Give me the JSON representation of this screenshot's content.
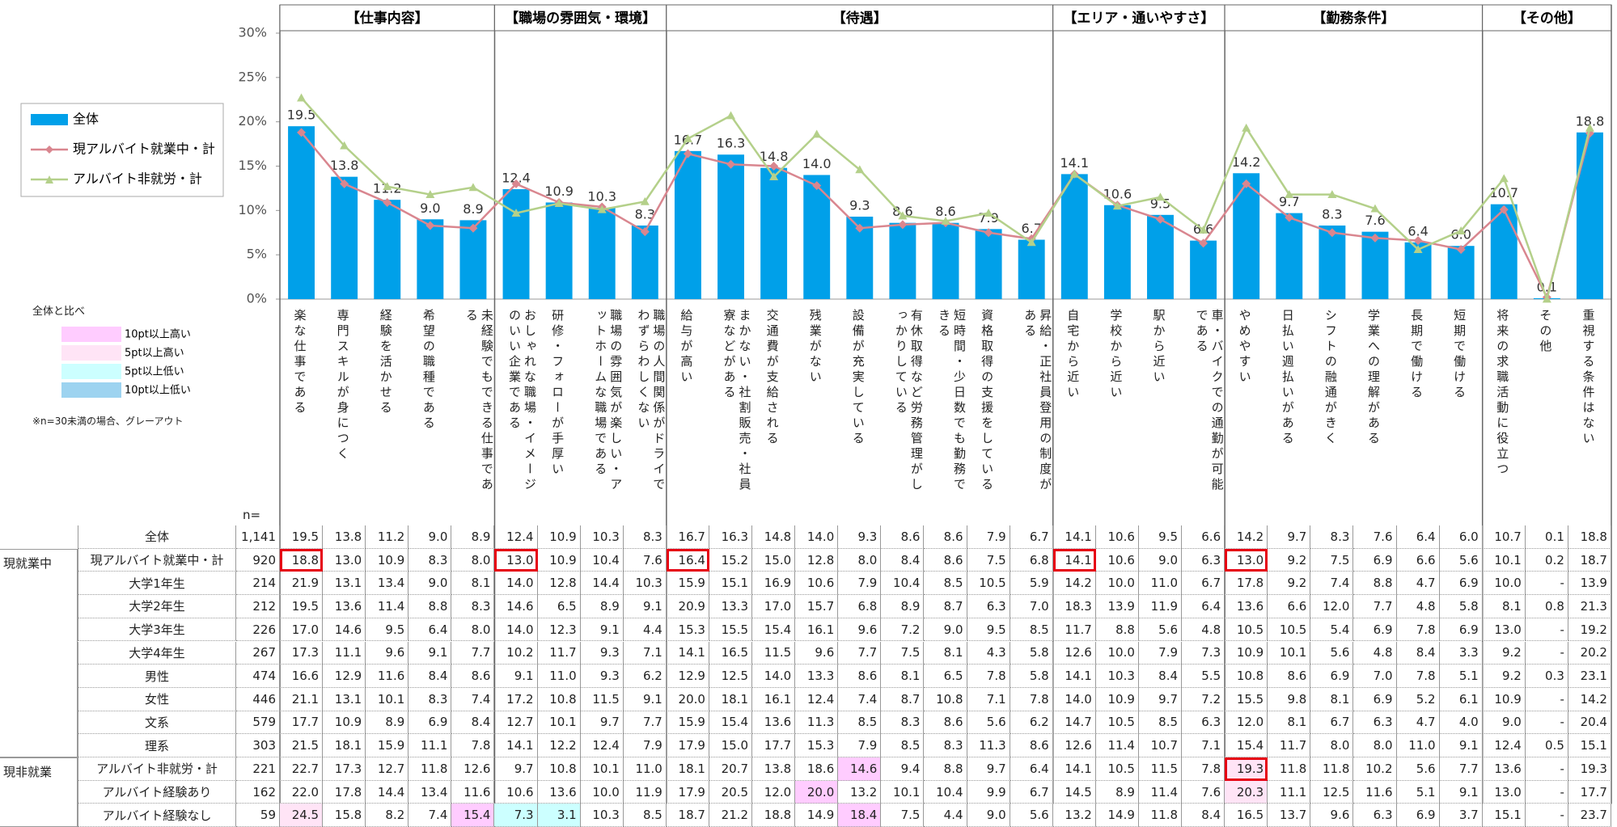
{
  "chart_data": {
    "type": "bar",
    "ylim": [
      0,
      30
    ],
    "yticks": [
      {
        "value": 0,
        "label": "0%"
      },
      {
        "value": 5,
        "label": "5%"
      },
      {
        "value": 10,
        "label": "10%"
      },
      {
        "value": 15,
        "label": "15%"
      },
      {
        "value": 20,
        "label": "20%"
      },
      {
        "value": 25,
        "label": "25%"
      },
      {
        "value": 30,
        "label": "30%"
      }
    ],
    "groups": [
      {
        "name": "【仕事内容】",
        "span": 5
      },
      {
        "name": "【職場の雰囲気・環境】",
        "span": 4
      },
      {
        "name": "【待遇】",
        "span": 9
      },
      {
        "name": "【エリア・通いやすさ】",
        "span": 4
      },
      {
        "name": "【勤務条件】",
        "span": 6
      },
      {
        "name": "【その他】",
        "span": 3
      }
    ],
    "categories": [
      "楽な仕事である",
      "専門スキルが身につく",
      "経験を活かせる",
      "希望の職種である",
      "未経験でもできる仕事である",
      "おしゃれな職場・イメージのいい企業である",
      "研修・フォローが手厚い",
      "職場の雰囲気が楽しい・アットホームな職場である",
      "職場の人間関係がドライでわずらわしくない",
      "給与が高い",
      "まかない・社割販売・社員寮などがある",
      "交通費が支給される",
      "残業がない",
      "設備が充実している",
      "有休取得など労務管理がしっかりしている",
      "短時間・少日数でも勤務できる",
      "資格取得の支援をしている",
      "昇給・正社員登用の制度がある",
      "自宅から近い",
      "学校から近い",
      "駅から近い",
      "車・バイクでの通勤が可能である",
      "やめやすい",
      "日払い週払いがある",
      "シフトの融通がきく",
      "学業への理解がある",
      "長期で働ける",
      "短期で働ける",
      "将来の求職活動に役立つ",
      "その他",
      "重視する条件はない"
    ],
    "series": [
      {
        "name": "全体",
        "type": "bar",
        "color": "#00a0e9",
        "values": [
          19.5,
          13.8,
          11.2,
          9.0,
          8.9,
          12.4,
          10.9,
          10.3,
          8.3,
          16.7,
          16.3,
          14.8,
          14.0,
          9.3,
          8.6,
          8.6,
          7.9,
          6.7,
          14.1,
          10.6,
          9.5,
          6.6,
          14.2,
          9.7,
          8.3,
          7.6,
          6.4,
          6.0,
          10.7,
          0.1,
          18.8
        ],
        "value_labels": [
          "19.5",
          "13.8",
          "11.2",
          "9.0",
          "8.9",
          "12.4",
          "10.9",
          "10.3",
          "8.3",
          "16.7",
          "16.3",
          "14.8",
          "14.0",
          "9.3",
          "8.6",
          "8.6",
          "7.9",
          "6.7",
          "14.1",
          "10.6",
          "9.5",
          "6.6",
          "14.2",
          "9.7",
          "8.3",
          "7.6",
          "6.4",
          "6.0",
          "10.7",
          "0.1",
          "18.8"
        ]
      },
      {
        "name": "現アルバイト就業中・計",
        "type": "line",
        "marker": "diamond",
        "color": "#d9868f",
        "values": [
          18.8,
          13.0,
          10.9,
          8.3,
          8.0,
          13.0,
          10.9,
          10.4,
          7.6,
          16.4,
          15.2,
          15.0,
          12.8,
          8.0,
          8.4,
          8.6,
          7.5,
          6.8,
          14.1,
          10.6,
          9.0,
          6.3,
          13.0,
          9.2,
          7.5,
          6.9,
          6.6,
          5.6,
          10.1,
          0.2,
          18.7
        ]
      },
      {
        "name": "アルバイト非就労・計",
        "type": "line",
        "marker": "triangle",
        "color": "#b4d08a",
        "values": [
          22.7,
          17.3,
          12.7,
          11.8,
          12.6,
          9.7,
          10.8,
          10.1,
          11.0,
          18.1,
          20.7,
          13.8,
          18.6,
          14.6,
          9.4,
          8.8,
          9.7,
          6.4,
          14.1,
          10.5,
          11.5,
          7.8,
          19.3,
          11.8,
          11.8,
          10.2,
          5.6,
          7.7,
          13.6,
          0,
          19.3
        ]
      }
    ]
  },
  "highlight_legend": {
    "title": "全体と比べ",
    "items": [
      {
        "label": "10pt以上高い",
        "color": "#ffccff"
      },
      {
        "label": "5pt以上高い",
        "color": "#ffe4f6"
      },
      {
        "label": "5pt以上低い",
        "color": "#ccffff"
      },
      {
        "label": "10pt以上低い",
        "color": "#9dd3f0"
      }
    ],
    "note": "※n=30未満の場合、グレーアウト"
  },
  "table": {
    "n_label": "n=",
    "total": {
      "label": "全体",
      "n": "1,141",
      "values": [
        "19.5",
        "13.8",
        "11.2",
        "9.0",
        "8.9",
        "12.4",
        "10.9",
        "10.3",
        "8.3",
        "16.7",
        "16.3",
        "14.8",
        "14.0",
        "9.3",
        "8.6",
        "8.6",
        "7.9",
        "6.7",
        "14.1",
        "10.6",
        "9.5",
        "6.6",
        "14.2",
        "9.7",
        "8.3",
        "7.6",
        "6.4",
        "6.0",
        "10.7",
        "0.1",
        "18.8"
      ]
    },
    "sections": [
      {
        "name": "現就業中",
        "rows": [
          {
            "label": "現アルバイト就業中・計",
            "n": "920",
            "boxed": [
              0,
              5,
              9,
              18,
              22
            ],
            "values": [
              "18.8",
              "13.0",
              "10.9",
              "8.3",
              "8.0",
              "13.0",
              "10.9",
              "10.4",
              "7.6",
              "16.4",
              "15.2",
              "15.0",
              "12.8",
              "8.0",
              "8.4",
              "8.6",
              "7.5",
              "6.8",
              "14.1",
              "10.6",
              "9.0",
              "6.3",
              "13.0",
              "9.2",
              "7.5",
              "6.9",
              "6.6",
              "5.6",
              "10.1",
              "0.2",
              "18.7"
            ]
          },
          {
            "label": "大学1年生",
            "n": "214",
            "values": [
              "21.9",
              "13.1",
              "13.4",
              "9.0",
              "8.1",
              "14.0",
              "12.8",
              "14.4",
              "10.3",
              "15.9",
              "15.1",
              "16.9",
              "10.6",
              "7.9",
              "10.4",
              "8.5",
              "10.5",
              "5.9",
              "14.2",
              "10.0",
              "11.0",
              "6.7",
              "17.8",
              "9.2",
              "7.4",
              "8.8",
              "4.7",
              "6.9",
              "10.0",
              "-",
              "13.9"
            ]
          },
          {
            "label": "大学2年生",
            "n": "212",
            "values": [
              "19.5",
              "13.6",
              "11.4",
              "8.8",
              "8.3",
              "14.6",
              "6.5",
              "8.9",
              "9.1",
              "20.9",
              "13.3",
              "17.0",
              "15.7",
              "6.8",
              "8.9",
              "8.7",
              "6.3",
              "7.0",
              "18.3",
              "13.9",
              "11.9",
              "6.4",
              "13.6",
              "6.6",
              "12.0",
              "7.7",
              "4.8",
              "5.8",
              "8.1",
              "0.8",
              "21.3"
            ]
          },
          {
            "label": "大学3年生",
            "n": "226",
            "values": [
              "17.0",
              "14.6",
              "9.5",
              "6.4",
              "8.0",
              "14.0",
              "12.3",
              "9.1",
              "4.4",
              "15.3",
              "15.5",
              "15.4",
              "16.1",
              "9.6",
              "7.2",
              "9.0",
              "9.5",
              "8.5",
              "11.7",
              "8.8",
              "5.6",
              "4.8",
              "10.5",
              "10.5",
              "5.4",
              "6.9",
              "7.8",
              "6.9",
              "13.0",
              "-",
              "19.2"
            ]
          },
          {
            "label": "大学4年生",
            "n": "267",
            "values": [
              "17.3",
              "11.1",
              "9.6",
              "9.1",
              "7.7",
              "10.2",
              "11.7",
              "9.3",
              "7.1",
              "14.1",
              "16.5",
              "11.5",
              "9.6",
              "7.7",
              "7.5",
              "8.1",
              "4.3",
              "5.8",
              "12.6",
              "10.0",
              "7.9",
              "7.3",
              "10.9",
              "10.1",
              "5.6",
              "4.8",
              "8.4",
              "3.3",
              "9.2",
              "-",
              "20.2"
            ]
          },
          {
            "label": "男性",
            "n": "474",
            "values": [
              "16.6",
              "12.9",
              "11.6",
              "8.4",
              "8.6",
              "9.1",
              "11.0",
              "9.3",
              "6.2",
              "12.9",
              "12.5",
              "14.0",
              "13.3",
              "8.6",
              "8.1",
              "6.5",
              "7.8",
              "5.8",
              "14.1",
              "10.3",
              "8.4",
              "5.5",
              "10.8",
              "8.6",
              "6.9",
              "7.0",
              "7.8",
              "5.1",
              "9.2",
              "0.3",
              "23.1"
            ]
          },
          {
            "label": "女性",
            "n": "446",
            "values": [
              "21.1",
              "13.1",
              "10.1",
              "8.3",
              "7.4",
              "17.2",
              "10.8",
              "11.5",
              "9.1",
              "20.0",
              "18.1",
              "16.1",
              "12.4",
              "7.4",
              "8.7",
              "10.8",
              "7.1",
              "7.8",
              "14.0",
              "10.9",
              "9.7",
              "7.2",
              "15.5",
              "9.8",
              "8.1",
              "6.9",
              "5.2",
              "6.1",
              "10.9",
              "-",
              "14.2"
            ]
          },
          {
            "label": "文系",
            "n": "579",
            "values": [
              "17.7",
              "10.9",
              "8.9",
              "6.9",
              "8.4",
              "12.7",
              "10.1",
              "9.7",
              "7.7",
              "15.9",
              "15.4",
              "13.6",
              "11.3",
              "8.5",
              "8.3",
              "8.6",
              "5.6",
              "6.2",
              "14.7",
              "10.5",
              "8.5",
              "6.3",
              "12.0",
              "8.1",
              "6.7",
              "6.3",
              "4.7",
              "4.0",
              "9.0",
              "-",
              "20.4"
            ]
          },
          {
            "label": "理系",
            "n": "303",
            "values": [
              "21.5",
              "18.1",
              "15.9",
              "11.1",
              "7.8",
              "14.1",
              "12.2",
              "12.4",
              "7.9",
              "17.9",
              "15.0",
              "17.7",
              "15.3",
              "7.9",
              "8.5",
              "8.3",
              "11.3",
              "8.6",
              "12.6",
              "11.4",
              "10.7",
              "7.1",
              "15.4",
              "11.7",
              "8.0",
              "8.0",
              "11.0",
              "9.1",
              "12.4",
              "0.5",
              "15.1"
            ]
          }
        ]
      },
      {
        "name": "現非就業",
        "rows": [
          {
            "label": "アルバイト非就労・計",
            "n": "221",
            "boxed": [
              22
            ],
            "highlights": [
              {
                "col": 13,
                "color": "#ffccff"
              },
              {
                "col": 22,
                "color": "#ffe4f6"
              }
            ],
            "values": [
              "22.7",
              "17.3",
              "12.7",
              "11.8",
              "12.6",
              "9.7",
              "10.8",
              "10.1",
              "11.0",
              "18.1",
              "20.7",
              "13.8",
              "18.6",
              "14.6",
              "9.4",
              "8.8",
              "9.7",
              "6.4",
              "14.1",
              "10.5",
              "11.5",
              "7.8",
              "19.3",
              "11.8",
              "11.8",
              "10.2",
              "5.6",
              "7.7",
              "13.6",
              "-",
              "19.3"
            ]
          },
          {
            "label": "アルバイト経験あり",
            "n": "162",
            "highlights": [
              {
                "col": 12,
                "color": "#ffccff"
              },
              {
                "col": 22,
                "color": "#ffe4f6"
              }
            ],
            "values": [
              "22.0",
              "17.8",
              "14.4",
              "13.4",
              "11.6",
              "10.6",
              "13.6",
              "10.0",
              "11.9",
              "17.9",
              "20.5",
              "12.0",
              "20.0",
              "13.2",
              "10.1",
              "10.4",
              "9.9",
              "6.7",
              "14.5",
              "8.9",
              "11.4",
              "7.6",
              "20.3",
              "11.1",
              "12.5",
              "11.6",
              "5.1",
              "9.1",
              "13.0",
              "-",
              "17.7"
            ]
          },
          {
            "label": "アルバイト経験なし",
            "n": "59",
            "highlights": [
              {
                "col": 0,
                "color": "#ffe4f6"
              },
              {
                "col": 4,
                "color": "#ffccff"
              },
              {
                "col": 5,
                "color": "#ccffff"
              },
              {
                "col": 6,
                "color": "#ccffff"
              },
              {
                "col": 13,
                "color": "#ffccff"
              }
            ],
            "values": [
              "24.5",
              "15.8",
              "8.2",
              "7.4",
              "15.4",
              "7.3",
              "3.1",
              "10.3",
              "8.5",
              "18.7",
              "21.2",
              "18.8",
              "14.9",
              "18.4",
              "7.5",
              "4.4",
              "9.0",
              "5.6",
              "13.2",
              "14.9",
              "11.8",
              "8.4",
              "16.5",
              "13.7",
              "9.6",
              "6.3",
              "6.9",
              "3.7",
              "15.1",
              "-",
              "23.7"
            ]
          }
        ]
      }
    ]
  }
}
